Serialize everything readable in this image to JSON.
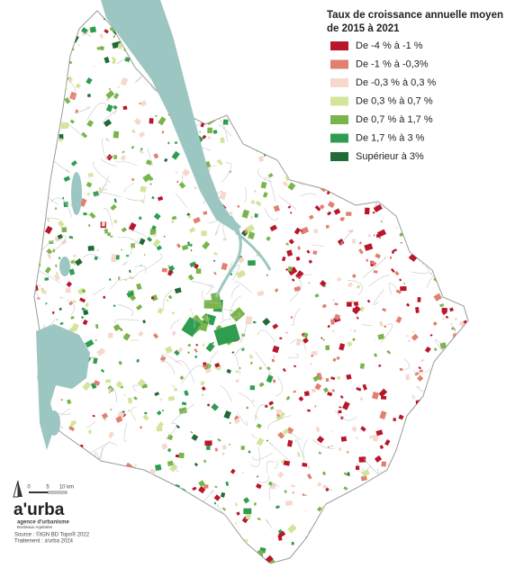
{
  "legend": {
    "title": [
      "Taux de croissance annuelle moyen",
      "de 2015 à 2021"
    ],
    "items": [
      {
        "label": "De -4 % à -1 %",
        "color": "#b8162a"
      },
      {
        "label": "De -1 % à -0,3%",
        "color": "#e0806e"
      },
      {
        "label": "De -0,3 % à 0,3 %",
        "color": "#f6d8cc"
      },
      {
        "label": "De 0,3 % à 0,7 %",
        "color": "#d3e59b"
      },
      {
        "label": "De 0,7 % à 1,7 %",
        "color": "#79b54a"
      },
      {
        "label": "De 1,7 % à 3 %",
        "color": "#2f9d4f"
      },
      {
        "label": "Supérieur à 3%",
        "color": "#1f6a36"
      }
    ]
  },
  "scale": {
    "labels": [
      "0",
      "5",
      "10 km"
    ]
  },
  "logo": {
    "name": "a'urba",
    "subtitle": "agence d'urbanisme",
    "region": "Bordeaux Aquitaine"
  },
  "source": [
    "Source : ©IGN BD Topo® 2022",
    "Traitement : a'urba 2024"
  ]
}
